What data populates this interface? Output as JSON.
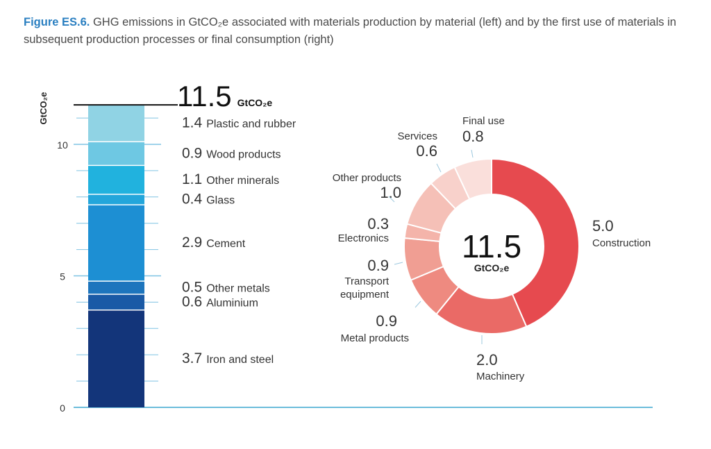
{
  "caption": {
    "figure_label": "Figure ES.6.",
    "text": "GHG emissions in GtCO₂e associated with materials production by material (left) and by the first use of materials in subsequent production processes or final consumption (right)"
  },
  "colors": {
    "stack": [
      "#13357a",
      "#1a5aa6",
      "#1d75bd",
      "#1d8fd3",
      "#23a6db",
      "#21b2de",
      "#6ec8e3",
      "#90d3e4"
    ],
    "donut": [
      "#e64a4f",
      "#ea6a66",
      "#ee8a80",
      "#f09e93",
      "#f4b4aa",
      "#f5c0b7",
      "#f8d1cb",
      "#fadfdb"
    ],
    "axis": "#3aa6cf",
    "gridline": "#7fc3e3"
  },
  "chart_data": [
    {
      "type": "bar",
      "stacked": true,
      "ylabel": "GtCO₂e",
      "ylim": [
        0,
        11.5
      ],
      "yticks": [
        "0",
        "5",
        "10"
      ],
      "total": {
        "value": "11.5",
        "unit": "GtCO₂e"
      },
      "categories": [
        "Iron and steel",
        "Aluminium",
        "Other metals",
        "Cement",
        "Glass",
        "Other minerals",
        "Wood products",
        "Plastic and rubber"
      ],
      "values": [
        3.7,
        0.6,
        0.5,
        2.9,
        0.4,
        1.1,
        0.9,
        1.4
      ],
      "value_labels": [
        "3.7",
        "0.6",
        "0.5",
        "2.9",
        "0.4",
        "1.1",
        "0.9",
        "1.4"
      ]
    },
    {
      "type": "pie",
      "donut": true,
      "center": {
        "value": "11.5",
        "unit": "GtCO₂e"
      },
      "categories": [
        "Construction",
        "Machinery",
        "Metal products",
        "Transport equipment",
        "Electronics",
        "Other products",
        "Services",
        "Final use"
      ],
      "values": [
        5.0,
        2.0,
        0.9,
        0.9,
        0.3,
        1.0,
        0.6,
        0.8
      ],
      "value_labels": [
        "5.0",
        "2.0",
        "0.9",
        "0.9",
        "0.3",
        "1.0",
        "0.6",
        "0.8"
      ]
    }
  ]
}
